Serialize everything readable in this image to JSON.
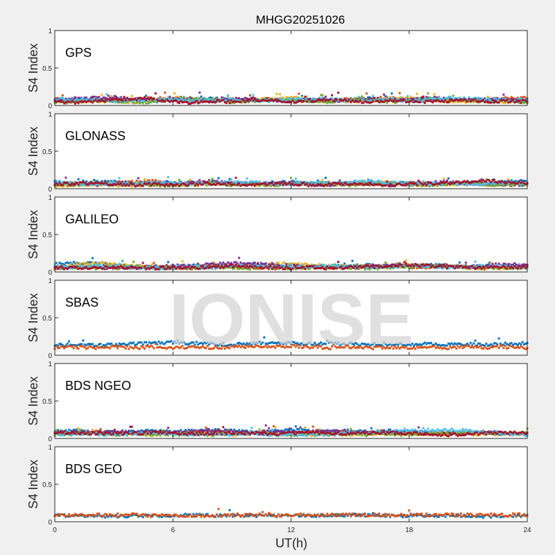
{
  "chart_data": {
    "type": "scatter",
    "title": "MHGG20251026",
    "xlabel": "UT(h)",
    "ylabel": "S4 Index",
    "xlim": [
      0,
      24
    ],
    "ylim": [
      0,
      1
    ],
    "xticks": [
      0,
      6,
      12,
      18,
      24
    ],
    "yticks": [
      0,
      0.5,
      1
    ],
    "ytick_labels": [
      "0",
      "0.5",
      "1"
    ],
    "xtick_labels": [
      "0",
      "6",
      "12",
      "18",
      "24"
    ],
    "watermark": "IONISE",
    "series_colors": [
      "#0072BD",
      "#D95319",
      "#EDB120",
      "#7E2F8E",
      "#77AC30",
      "#4DBEEE",
      "#A2142F"
    ],
    "sample_hours": "0..24 hourly",
    "panels": [
      {
        "label": "GPS",
        "series": [
          {
            "values": [
              0.06,
              0.07,
              0.08,
              0.06,
              0.05,
              0.06,
              0.07,
              0.08,
              0.09,
              0.08,
              0.07,
              0.07,
              0.08,
              0.07,
              0.06,
              0.08,
              0.09,
              0.07,
              0.06,
              0.07,
              0.08,
              0.07,
              0.06,
              0.07,
              0.08
            ]
          },
          {
            "values": [
              0.08,
              0.07,
              0.06,
              0.07,
              0.08,
              0.09,
              0.07,
              0.06,
              0.07,
              0.08,
              0.09,
              0.08,
              0.07,
              0.06,
              0.07,
              0.08,
              0.09,
              0.1,
              0.08,
              0.07,
              0.06,
              0.07,
              0.08,
              0.09,
              0.1
            ]
          },
          {
            "values": [
              0.05,
              0.06,
              0.05,
              0.06,
              0.05,
              0.07,
              0.1,
              0.09,
              0.07,
              0.06,
              0.08,
              0.09,
              0.1,
              0.08,
              0.06,
              0.05,
              0.06,
              0.08,
              0.1,
              0.09,
              0.06,
              0.05,
              0.06,
              0.05,
              0.06
            ]
          },
          {
            "values": [
              0.07,
              0.09,
              0.1,
              0.11,
              0.08,
              0.07,
              0.1,
              0.09,
              0.06,
              0.08,
              0.09,
              0.07,
              0.06,
              0.08,
              0.07,
              0.06,
              0.09,
              0.08,
              0.07,
              0.1,
              0.09,
              0.07,
              0.08,
              0.07,
              0.06
            ]
          },
          {
            "values": [
              0.04,
              0.05,
              0.07,
              0.06,
              0.05,
              0.04,
              0.08,
              0.09,
              0.07,
              0.05,
              0.06,
              0.08,
              0.07,
              0.06,
              0.05,
              0.08,
              0.07,
              0.05,
              0.06,
              0.09,
              0.08,
              0.06,
              0.05,
              0.06,
              0.05
            ]
          },
          {
            "values": [
              0.09,
              0.08,
              0.07,
              0.06,
              0.07,
              0.08,
              0.09,
              0.07,
              0.06,
              0.08,
              0.07,
              0.06,
              0.08,
              0.09,
              0.08,
              0.07,
              0.06,
              0.09,
              0.07,
              0.08,
              0.1,
              0.09,
              0.08,
              0.07,
              0.08
            ]
          },
          {
            "values": [
              0.05,
              0.04,
              0.06,
              0.07,
              0.09,
              0.08,
              0.05,
              0.04,
              0.06,
              0.05,
              0.07,
              0.06,
              0.05,
              0.07,
              0.08,
              0.06,
              0.05,
              0.07,
              0.06,
              0.05,
              0.06,
              0.07,
              0.05,
              0.06,
              0.05
            ]
          }
        ]
      },
      {
        "label": "GLONASS",
        "series": [
          {
            "values": [
              0.09,
              0.08,
              0.1,
              0.09,
              0.07,
              0.08,
              0.07,
              0.08,
              0.09,
              0.07,
              0.06,
              0.08,
              0.09,
              0.07,
              0.06,
              0.08,
              0.09,
              0.07,
              0.08,
              0.06,
              0.07,
              0.08,
              0.07,
              0.09,
              0.1
            ]
          },
          {
            "values": [
              0.06,
              0.07,
              0.06,
              0.08,
              0.09,
              0.1,
              0.06,
              0.07,
              0.08,
              0.06,
              0.07,
              0.06,
              0.07,
              0.06,
              0.08,
              0.07,
              0.06,
              0.07,
              0.08,
              0.07,
              0.06,
              0.07,
              0.08,
              0.06,
              0.07
            ]
          },
          {
            "values": [
              0.04,
              0.05,
              0.06,
              0.05,
              0.04,
              0.05,
              0.06,
              0.05,
              0.06,
              0.07,
              0.05,
              0.06,
              0.07,
              0.06,
              0.05,
              0.08,
              0.09,
              0.08,
              0.06,
              0.05,
              0.06,
              0.07,
              0.05,
              0.06,
              0.05
            ]
          },
          {
            "values": [
              0.07,
              0.06,
              0.05,
              0.07,
              0.08,
              0.06,
              0.05,
              0.09,
              0.1,
              0.08,
              0.06,
              0.07,
              0.08,
              0.06,
              0.05,
              0.06,
              0.07,
              0.05,
              0.06,
              0.08,
              0.09,
              0.07,
              0.06,
              0.05,
              0.06
            ]
          },
          {
            "values": [
              0.05,
              0.06,
              0.07,
              0.05,
              0.06,
              0.05,
              0.04,
              0.06,
              0.07,
              0.05,
              0.06,
              0.05,
              0.06,
              0.07,
              0.06,
              0.05,
              0.06,
              0.07,
              0.06,
              0.05,
              0.06,
              0.08,
              0.06,
              0.05,
              0.06
            ]
          },
          {
            "values": [
              0.08,
              0.07,
              0.06,
              0.07,
              0.06,
              0.08,
              0.07,
              0.06,
              0.07,
              0.08,
              0.09,
              0.07,
              0.06,
              0.08,
              0.07,
              0.09,
              0.1,
              0.08,
              0.07,
              0.06,
              0.07,
              0.06,
              0.07,
              0.08,
              0.07
            ]
          },
          {
            "values": [
              0.06,
              0.07,
              0.08,
              0.06,
              0.05,
              0.06,
              0.05,
              0.06,
              0.07,
              0.06,
              0.05,
              0.06,
              0.07,
              0.05,
              0.06,
              0.07,
              0.06,
              0.05,
              0.06,
              0.07,
              0.08,
              0.09,
              0.1,
              0.09,
              0.08
            ]
          }
        ]
      },
      {
        "label": "GALILEO",
        "series": [
          {
            "values": [
              0.1,
              0.12,
              0.11,
              0.09,
              0.07,
              0.06,
              0.07,
              0.08,
              0.09,
              0.08,
              0.09,
              0.1,
              0.09,
              0.08,
              0.07,
              0.08,
              0.09,
              0.08,
              0.07,
              0.09,
              0.08,
              0.07,
              0.08,
              0.07,
              0.06
            ]
          },
          {
            "values": [
              0.05,
              0.06,
              0.07,
              0.05,
              0.06,
              0.07,
              0.06,
              0.05,
              0.06,
              0.07,
              0.06,
              0.05,
              0.06,
              0.07,
              0.06,
              0.05,
              0.07,
              0.08,
              0.07,
              0.06,
              0.07,
              0.06,
              0.05,
              0.06,
              0.05
            ]
          },
          {
            "values": [
              0.08,
              0.09,
              0.12,
              0.1,
              0.08,
              0.07,
              0.06,
              0.07,
              0.08,
              0.09,
              0.08,
              0.1,
              0.11,
              0.09,
              0.08,
              0.07,
              0.08,
              0.07,
              0.09,
              0.08,
              0.07,
              0.06,
              0.07,
              0.06,
              0.07
            ]
          },
          {
            "values": [
              0.06,
              0.07,
              0.06,
              0.05,
              0.06,
              0.07,
              0.08,
              0.09,
              0.1,
              0.12,
              0.11,
              0.09,
              0.08,
              0.07,
              0.06,
              0.07,
              0.08,
              0.09,
              0.1,
              0.09,
              0.08,
              0.07,
              0.09,
              0.1,
              0.09
            ]
          },
          {
            "values": [
              0.05,
              0.06,
              0.05,
              0.06,
              0.07,
              0.06,
              0.05,
              0.06,
              0.07,
              0.06,
              0.05,
              0.06,
              0.05,
              0.06,
              0.07,
              0.06,
              0.05,
              0.06,
              0.07,
              0.08,
              0.07,
              0.06,
              0.05,
              0.06,
              0.05
            ]
          },
          {
            "values": [
              0.07,
              0.06,
              0.08,
              0.07,
              0.06,
              0.05,
              0.06,
              0.07,
              0.06,
              0.07,
              0.08,
              0.07,
              0.06,
              0.07,
              0.08,
              0.07,
              0.06,
              0.07,
              0.08,
              0.07,
              0.06,
              0.07,
              0.08,
              0.07,
              0.06
            ]
          },
          {
            "values": [
              0.06,
              0.05,
              0.06,
              0.07,
              0.06,
              0.05,
              0.06,
              0.05,
              0.07,
              0.08,
              0.07,
              0.06,
              0.05,
              0.06,
              0.05,
              0.06,
              0.07,
              0.08,
              0.09,
              0.08,
              0.07,
              0.06,
              0.07,
              0.06,
              0.07
            ]
          }
        ]
      },
      {
        "label": "SBAS",
        "series": [
          {
            "values": [
              0.13,
              0.14,
              0.13,
              0.14,
              0.15,
              0.16,
              0.17,
              0.16,
              0.15,
              0.14,
              0.16,
              0.17,
              0.16,
              0.15,
              0.16,
              0.15,
              0.14,
              0.15,
              0.14,
              0.15,
              0.14,
              0.15,
              0.14,
              0.15,
              0.16
            ]
          },
          {
            "values": [
              0.1,
              0.11,
              0.1,
              0.11,
              0.1,
              0.11,
              0.1,
              0.11,
              0.1,
              0.11,
              0.12,
              0.11,
              0.12,
              0.11,
              0.1,
              0.11,
              0.1,
              0.11,
              0.1,
              0.11,
              0.1,
              0.11,
              0.1,
              0.11,
              0.1
            ]
          }
        ]
      },
      {
        "label": "BDS NGEO",
        "series": [
          {
            "values": [
              0.09,
              0.1,
              0.09,
              0.08,
              0.09,
              0.1,
              0.09,
              0.1,
              0.11,
              0.1,
              0.09,
              0.1,
              0.11,
              0.1,
              0.09,
              0.1,
              0.09,
              0.1,
              0.09,
              0.08,
              0.07,
              0.08,
              0.07,
              0.06,
              0.07
            ]
          },
          {
            "values": [
              0.07,
              0.08,
              0.09,
              0.08,
              0.07,
              0.08,
              0.07,
              0.08,
              0.09,
              0.08,
              0.07,
              0.08,
              0.07,
              0.08,
              0.09,
              0.08,
              0.07,
              0.08,
              0.07,
              0.06,
              0.07,
              0.08,
              0.07,
              0.06,
              0.07
            ]
          },
          {
            "values": [
              0.06,
              0.07,
              0.06,
              0.05,
              0.06,
              0.05,
              0.06,
              0.07,
              0.06,
              0.05,
              0.06,
              0.07,
              0.06,
              0.05,
              0.06,
              0.05,
              0.06,
              0.07,
              0.06,
              0.05,
              0.06,
              0.05,
              0.06,
              0.07,
              0.06
            ]
          },
          {
            "values": [
              0.08,
              0.07,
              0.08,
              0.09,
              0.08,
              0.07,
              0.08,
              0.09,
              0.1,
              0.09,
              0.08,
              0.09,
              0.08,
              0.09,
              0.1,
              0.09,
              0.08,
              0.07,
              0.06,
              0.07,
              0.06,
              0.07,
              0.08,
              0.07,
              0.06
            ]
          },
          {
            "values": [
              0.05,
              0.06,
              0.07,
              0.06,
              0.05,
              0.06,
              0.05,
              0.06,
              0.05,
              0.06,
              0.07,
              0.06,
              0.05,
              0.06,
              0.05,
              0.06,
              0.05,
              0.06,
              0.05,
              0.06,
              0.07,
              0.08,
              0.07,
              0.06,
              0.07
            ]
          },
          {
            "values": [
              0.06,
              0.05,
              0.06,
              0.05,
              0.06,
              0.07,
              0.06,
              0.05,
              0.06,
              0.05,
              0.06,
              0.05,
              0.06,
              0.05,
              0.06,
              0.07,
              0.08,
              0.09,
              0.1,
              0.11,
              0.12,
              0.1,
              0.08,
              0.06,
              0.05
            ]
          },
          {
            "values": [
              0.07,
              0.08,
              0.07,
              0.06,
              0.07,
              0.08,
              0.07,
              0.06,
              0.07,
              0.08,
              0.07,
              0.06,
              0.07,
              0.08,
              0.07,
              0.06,
              0.07,
              0.08,
              0.07,
              0.06,
              0.05,
              0.06,
              0.07,
              0.08,
              0.07
            ]
          }
        ]
      },
      {
        "label": "BDS GEO",
        "series": [
          {
            "values": [
              0.08,
              0.08,
              0.08,
              0.07,
              0.08,
              0.08,
              0.08,
              0.09,
              0.08,
              0.08,
              0.08,
              0.08,
              0.08,
              0.08,
              0.08,
              0.09,
              0.09,
              0.08,
              0.08,
              0.08,
              0.08,
              0.08,
              0.07,
              0.08,
              0.08
            ]
          },
          {
            "values": [
              0.09,
              0.09,
              0.09,
              0.09,
              0.09,
              0.08,
              0.08,
              0.08,
              0.08,
              0.09,
              0.09,
              0.09,
              0.09,
              0.09,
              0.09,
              0.09,
              0.09,
              0.09,
              0.09,
              0.09,
              0.09,
              0.09,
              0.09,
              0.09,
              0.09
            ]
          }
        ]
      }
    ]
  }
}
